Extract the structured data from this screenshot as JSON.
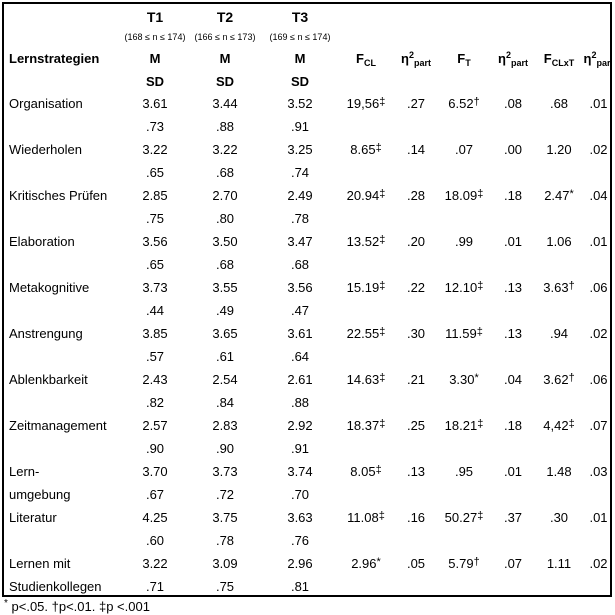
{
  "table": {
    "row_label_header": "Lernstrategien",
    "m_label": "M",
    "sd_label": "SD",
    "time_columns": [
      {
        "label": "T1",
        "n_range": "(168 ≤ n ≤ 174)"
      },
      {
        "label": "T2",
        "n_range": "(166 ≤ n ≤ 173)"
      },
      {
        "label": "T3",
        "n_range": "(169 ≤ n ≤ 174)"
      }
    ],
    "stat_columns": [
      {
        "base": "F",
        "sub": "CL"
      },
      {
        "base": "η",
        "sup": "2",
        "sub": "part"
      },
      {
        "base": "F",
        "sub": "T"
      },
      {
        "base": "η",
        "sup": "2",
        "sub": "part"
      },
      {
        "base": "F",
        "sub": "CLxT"
      },
      {
        "base": "η",
        "sup": "2",
        "sub": "part"
      }
    ],
    "rows": [
      {
        "label_line1": "Organisation",
        "label_line2": "",
        "m": [
          "3.61",
          "3.44",
          "3.52"
        ],
        "sd": [
          ".73",
          ".88",
          ".91"
        ],
        "stats": [
          {
            "v": "19,56",
            "m": "‡"
          },
          {
            "v": ".27",
            "m": ""
          },
          {
            "v": "6.52",
            "m": "†"
          },
          {
            "v": ".08",
            "m": ""
          },
          {
            "v": ".68",
            "m": ""
          },
          {
            "v": ".01",
            "m": ""
          }
        ]
      },
      {
        "label_line1": "Wiederholen",
        "label_line2": "",
        "m": [
          "3.22",
          "3.22",
          "3.25"
        ],
        "sd": [
          ".65",
          ".68",
          ".74"
        ],
        "stats": [
          {
            "v": "8.65",
            "m": "‡"
          },
          {
            "v": ".14",
            "m": ""
          },
          {
            "v": ".07",
            "m": ""
          },
          {
            "v": ".00",
            "m": ""
          },
          {
            "v": "1.20",
            "m": ""
          },
          {
            "v": ".02",
            "m": ""
          }
        ]
      },
      {
        "label_line1": "Kritisches Prüfen",
        "label_line2": "",
        "m": [
          "2.85",
          "2.70",
          "2.49"
        ],
        "sd": [
          ".75",
          ".80",
          ".78"
        ],
        "stats": [
          {
            "v": "20.94",
            "m": "‡"
          },
          {
            "v": ".28",
            "m": ""
          },
          {
            "v": "18.09",
            "m": "‡"
          },
          {
            "v": ".18",
            "m": ""
          },
          {
            "v": "2.47",
            "m": "*"
          },
          {
            "v": ".04",
            "m": ""
          }
        ]
      },
      {
        "label_line1": "Elaboration",
        "label_line2": "",
        "m": [
          "3.56",
          "3.50",
          "3.47"
        ],
        "sd": [
          ".65",
          ".68",
          ".68"
        ],
        "stats": [
          {
            "v": "13.52",
            "m": "‡"
          },
          {
            "v": ".20",
            "m": ""
          },
          {
            "v": ".99",
            "m": ""
          },
          {
            "v": ".01",
            "m": ""
          },
          {
            "v": "1.06",
            "m": ""
          },
          {
            "v": ".01",
            "m": ""
          }
        ]
      },
      {
        "label_line1": "Metakognitive",
        "label_line2": "",
        "m": [
          "3.73",
          "3.55",
          "3.56"
        ],
        "sd": [
          ".44",
          ".49",
          ".47"
        ],
        "stats": [
          {
            "v": "15.19",
            "m": "‡"
          },
          {
            "v": ".22",
            "m": ""
          },
          {
            "v": "12.10",
            "m": "‡"
          },
          {
            "v": ".13",
            "m": ""
          },
          {
            "v": "3.63",
            "m": "†"
          },
          {
            "v": ".06",
            "m": ""
          }
        ]
      },
      {
        "label_line1": "Anstrengung",
        "label_line2": "",
        "m": [
          "3.85",
          "3.65",
          "3.61"
        ],
        "sd": [
          ".57",
          ".61",
          ".64"
        ],
        "stats": [
          {
            "v": "22.55",
            "m": "‡"
          },
          {
            "v": ".30",
            "m": ""
          },
          {
            "v": "11.59",
            "m": "‡"
          },
          {
            "v": ".13",
            "m": ""
          },
          {
            "v": ".94",
            "m": ""
          },
          {
            "v": ".02",
            "m": ""
          }
        ]
      },
      {
        "label_line1": "Ablenkbarkeit",
        "label_line2": "",
        "m": [
          "2.43",
          "2.54",
          "2.61"
        ],
        "sd": [
          ".82",
          ".84",
          ".88"
        ],
        "stats": [
          {
            "v": "14.63",
            "m": "‡"
          },
          {
            "v": ".21",
            "m": ""
          },
          {
            "v": "3.30",
            "m": "*"
          },
          {
            "v": ".04",
            "m": ""
          },
          {
            "v": "3.62",
            "m": "†"
          },
          {
            "v": ".06",
            "m": ""
          }
        ]
      },
      {
        "label_line1": "Zeitmanagement",
        "label_line2": "",
        "m": [
          "2.57",
          "2.83",
          "2.92"
        ],
        "sd": [
          ".90",
          ".90",
          ".91"
        ],
        "stats": [
          {
            "v": "18.37",
            "m": "‡"
          },
          {
            "v": ".25",
            "m": ""
          },
          {
            "v": "18.21",
            "m": "‡"
          },
          {
            "v": ".18",
            "m": ""
          },
          {
            "v": "4,42",
            "m": "‡"
          },
          {
            "v": ".07",
            "m": ""
          }
        ]
      },
      {
        "label_line1": "Lern-",
        "label_line2": "umgebung",
        "m": [
          "3.70",
          "3.73",
          "3.74"
        ],
        "sd": [
          ".67",
          ".72",
          ".70"
        ],
        "stats": [
          {
            "v": "8.05",
            "m": "‡"
          },
          {
            "v": ".13",
            "m": ""
          },
          {
            "v": ".95",
            "m": ""
          },
          {
            "v": ".01",
            "m": ""
          },
          {
            "v": "1.48",
            "m": ""
          },
          {
            "v": ".03",
            "m": ""
          }
        ]
      },
      {
        "label_line1": "Literatur",
        "label_line2": "",
        "m": [
          "4.25",
          "3.75",
          "3.63"
        ],
        "sd": [
          ".60",
          ".78",
          ".76"
        ],
        "stats": [
          {
            "v": "11.08",
            "m": "‡"
          },
          {
            "v": ".16",
            "m": ""
          },
          {
            "v": "50.27",
            "m": "‡"
          },
          {
            "v": ".37",
            "m": ""
          },
          {
            "v": ".30",
            "m": ""
          },
          {
            "v": ".01",
            "m": ""
          }
        ]
      },
      {
        "label_line1": "Lernen mit",
        "label_line2": "Studienkollegen",
        "m": [
          "3.22",
          "3.09",
          "2.96"
        ],
        "sd": [
          ".71",
          ".75",
          ".81"
        ],
        "stats": [
          {
            "v": "2.96",
            "m": "*"
          },
          {
            "v": ".05",
            "m": ""
          },
          {
            "v": "5.79",
            "m": "†"
          },
          {
            "v": ".07",
            "m": ""
          },
          {
            "v": "1.11",
            "m": ""
          },
          {
            "v": ".02",
            "m": ""
          }
        ]
      }
    ]
  },
  "footnote": {
    "star": "*",
    "text": " p<.05. †p<.01. ‡p <.001"
  }
}
